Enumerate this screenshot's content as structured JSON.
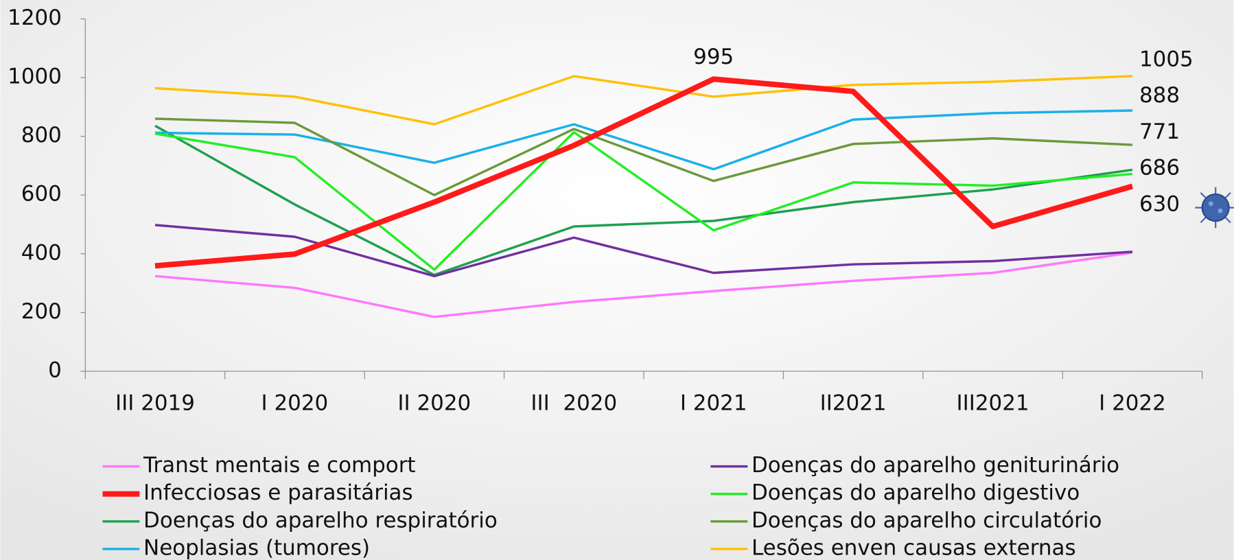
{
  "chart_data": {
    "type": "line",
    "categories": [
      "III 2019",
      "I 2020",
      "II 2020",
      "III  2020",
      "I 2021",
      "II2021",
      "III2021",
      "I 2022"
    ],
    "ylim": [
      0,
      1200
    ],
    "yticks": [
      0,
      200,
      400,
      600,
      800,
      1000,
      1200
    ],
    "series": [
      {
        "name": "Transt mentais e comport",
        "color": "#ff77ff",
        "width": 3,
        "values": [
          324,
          284,
          185,
          236,
          273,
          308,
          335,
          404
        ]
      },
      {
        "name": "Infecciosas e parasitárias",
        "color": "#ff1a1a",
        "width": 7,
        "values": [
          359,
          399,
          576,
          769,
          995,
          953,
          493,
          630
        ],
        "show_labels": [
          4,
          7
        ]
      },
      {
        "name": "Doenças do aparelho respiratório",
        "color": "#1ea050",
        "width": 3,
        "values": [
          836,
          568,
          328,
          493,
          512,
          576,
          619,
          686
        ],
        "show_labels": [
          7
        ]
      },
      {
        "name": "Neoplasias (tumores)",
        "color": "#1ab0e8",
        "width": 3,
        "values": [
          812,
          806,
          710,
          841,
          688,
          857,
          879,
          888
        ],
        "show_labels": [
          7
        ]
      },
      {
        "name": "Doenças do aparelho geniturinário",
        "color": "#7030a0",
        "width": 3,
        "values": [
          498,
          458,
          324,
          455,
          335,
          364,
          375,
          407
        ]
      },
      {
        "name": "Doenças do aparelho digestivo",
        "color": "#22ee22",
        "width": 3,
        "values": [
          809,
          729,
          346,
          814,
          480,
          643,
          632,
          672
        ]
      },
      {
        "name": "Doenças do aparelho circulatório",
        "color": "#6a9a3a",
        "width": 3,
        "values": [
          860,
          846,
          600,
          825,
          648,
          774,
          793,
          771
        ],
        "show_labels": [
          7
        ]
      },
      {
        "name": "Lesões enven causas externas",
        "color": "#ffc000",
        "width": 3,
        "values": [
          964,
          935,
          841,
          1005,
          935,
          975,
          986,
          1005
        ],
        "show_labels": [
          7
        ]
      }
    ]
  }
}
